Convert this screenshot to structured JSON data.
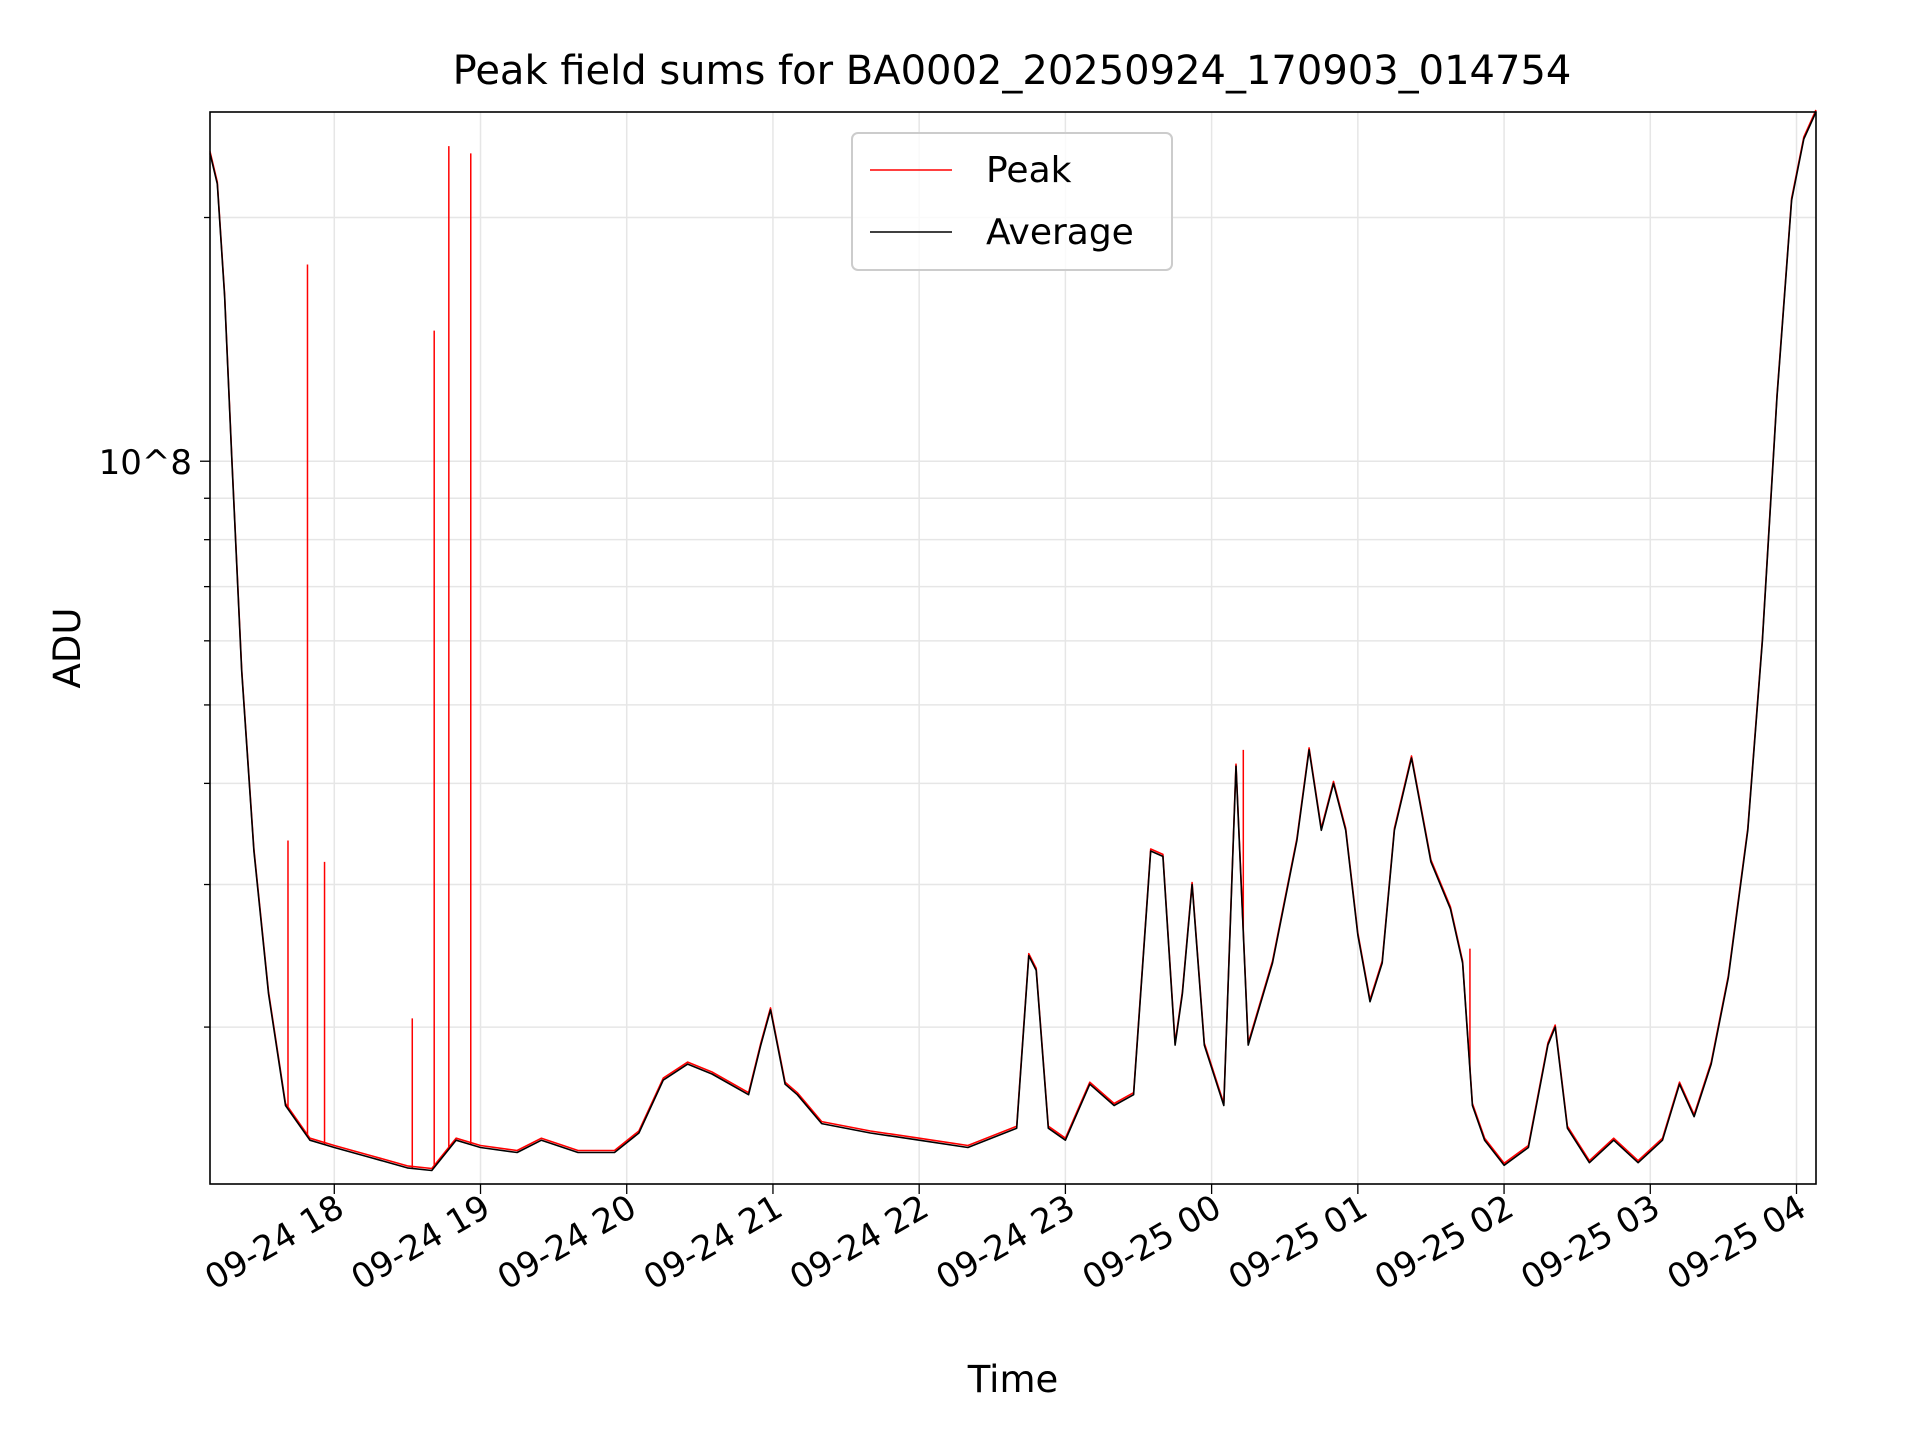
{
  "chart_data": {
    "type": "line",
    "title": "Peak field sums for BA0002_20250924_170903_014754",
    "xlabel": "Time",
    "ylabel": "ADU",
    "yscale": "log",
    "ylim": [
      12800000,
      270000000
    ],
    "xlim": [
      "09-24 17:09",
      "09-25 04:08"
    ],
    "y_tick_labels": [
      {
        "value": 100000000,
        "label": "10^8"
      }
    ],
    "x_tick_labels": [
      "09-24 18",
      "09-24 19",
      "09-24 20",
      "09-24 21",
      "09-24 22",
      "09-24 23",
      "09-25 00",
      "09-25 01",
      "09-25 02",
      "09-25 03",
      "09-25 04"
    ],
    "x_ticks": [
      "09-24 18:00",
      "09-24 19:00",
      "09-24 20:00",
      "09-24 21:00",
      "09-24 22:00",
      "09-24 23:00",
      "09-25 00:00",
      "09-25 01:00",
      "09-25 02:00",
      "09-25 03:00",
      "09-25 04:00"
    ],
    "grid": true,
    "legend": "upper-center",
    "series": [
      {
        "name": "Average",
        "color": "#000000",
        "points": [
          [
            "09-24 17:09",
            240000000.0
          ],
          [
            "09-24 17:12",
            220000000.0
          ],
          [
            "09-24 17:15",
            160000000.0
          ],
          [
            "09-24 17:18",
            100000000.0
          ],
          [
            "09-24 17:22",
            55000000.0
          ],
          [
            "09-24 17:27",
            33000000.0
          ],
          [
            "09-24 17:33",
            22000000.0
          ],
          [
            "09-24 17:40",
            16000000.0
          ],
          [
            "09-24 17:50",
            14500000.0
          ],
          [
            "09-24 18:00",
            14200000.0
          ],
          [
            "09-24 18:15",
            13800000.0
          ],
          [
            "09-24 18:30",
            13400000.0
          ],
          [
            "09-24 18:40",
            13300000.0
          ],
          [
            "09-24 18:50",
            14500000.0
          ],
          [
            "09-24 19:00",
            14200000.0
          ],
          [
            "09-24 19:15",
            14000000.0
          ],
          [
            "09-24 19:25",
            14500000.0
          ],
          [
            "09-24 19:40",
            14000000.0
          ],
          [
            "09-24 19:55",
            14000000.0
          ],
          [
            "09-24 20:05",
            14800000.0
          ],
          [
            "09-24 20:15",
            17200000.0
          ],
          [
            "09-24 20:25",
            18000000.0
          ],
          [
            "09-24 20:35",
            17500000.0
          ],
          [
            "09-24 20:50",
            16500000.0
          ],
          [
            "09-24 20:55",
            19000000.0
          ],
          [
            "09-24 20:59",
            21000000.0
          ],
          [
            "09-24 21:05",
            17000000.0
          ],
          [
            "09-24 21:10",
            16500000.0
          ],
          [
            "09-24 21:20",
            15200000.0
          ],
          [
            "09-24 21:40",
            14800000.0
          ],
          [
            "09-24 22:00",
            14500000.0
          ],
          [
            "09-24 22:20",
            14200000.0
          ],
          [
            "09-24 22:40",
            15000000.0
          ],
          [
            "09-24 22:45",
            24500000.0
          ],
          [
            "09-24 22:48",
            23500000.0
          ],
          [
            "09-24 22:53",
            15000000.0
          ],
          [
            "09-24 23:00",
            14500000.0
          ],
          [
            "09-24 23:10",
            17000000.0
          ],
          [
            "09-24 23:20",
            16000000.0
          ],
          [
            "09-24 23:28",
            16500000.0
          ],
          [
            "09-24 23:35",
            33000000.0
          ],
          [
            "09-24 23:40",
            32500000.0
          ],
          [
            "09-24 23:45",
            19000000.0
          ],
          [
            "09-24 23:48",
            22000000.0
          ],
          [
            "09-24 23:52",
            30000000.0
          ],
          [
            "09-24 23:57",
            19000000.0
          ],
          [
            "09-25 00:05",
            16000000.0
          ],
          [
            "09-25 00:10",
            42000000.0
          ],
          [
            "09-25 00:15",
            19000000.0
          ],
          [
            "09-25 00:25",
            24000000.0
          ],
          [
            "09-25 00:35",
            34000000.0
          ],
          [
            "09-25 00:40",
            44000000.0
          ],
          [
            "09-25 00:45",
            35000000.0
          ],
          [
            "09-25 00:50",
            40000000.0
          ],
          [
            "09-25 00:55",
            35000000.0
          ],
          [
            "09-25 01:00",
            26000000.0
          ],
          [
            "09-25 01:05",
            21500000.0
          ],
          [
            "09-25 01:10",
            24000000.0
          ],
          [
            "09-25 01:15",
            35000000.0
          ],
          [
            "09-25 01:22",
            43000000.0
          ],
          [
            "09-25 01:30",
            32000000.0
          ],
          [
            "09-25 01:38",
            28000000.0
          ],
          [
            "09-25 01:43",
            24000000.0
          ],
          [
            "09-25 01:47",
            16000000.0
          ],
          [
            "09-25 01:52",
            14500000.0
          ],
          [
            "09-25 02:00",
            13500000.0
          ],
          [
            "09-25 02:10",
            14200000.0
          ],
          [
            "09-25 02:18",
            19000000.0
          ],
          [
            "09-25 02:21",
            20000000.0
          ],
          [
            "09-25 02:26",
            15000000.0
          ],
          [
            "09-25 02:35",
            13600000.0
          ],
          [
            "09-25 02:45",
            14500000.0
          ],
          [
            "09-25 02:55",
            13600000.0
          ],
          [
            "09-25 03:05",
            14500000.0
          ],
          [
            "09-25 03:12",
            17000000.0
          ],
          [
            "09-25 03:18",
            15500000.0
          ],
          [
            "09-25 03:25",
            18000000.0
          ],
          [
            "09-25 03:32",
            23000000.0
          ],
          [
            "09-25 03:40",
            35000000.0
          ],
          [
            "09-25 03:46",
            60000000.0
          ],
          [
            "09-25 03:52",
            120000000.0
          ],
          [
            "09-25 03:58",
            210000000.0
          ],
          [
            "09-25 04:03",
            250000000.0
          ],
          [
            "09-25 04:08",
            270000000.0
          ]
        ]
      },
      {
        "name": "Peak",
        "color": "#ff0000",
        "points": [
          [
            "09-24 17:41",
            34000000.0
          ],
          [
            "09-24 17:49",
            175000000.0
          ],
          [
            "09-24 17:56",
            32000000.0
          ],
          [
            "09-24 18:32",
            20500000.0
          ],
          [
            "09-24 18:41",
            145000000.0
          ],
          [
            "09-24 18:47",
            245000000.0
          ],
          [
            "09-24 18:56",
            240000000.0
          ],
          [
            "09-25 00:13",
            44000000.0
          ],
          [
            "09-25 01:46",
            25000000.0
          ]
        ]
      }
    ]
  }
}
